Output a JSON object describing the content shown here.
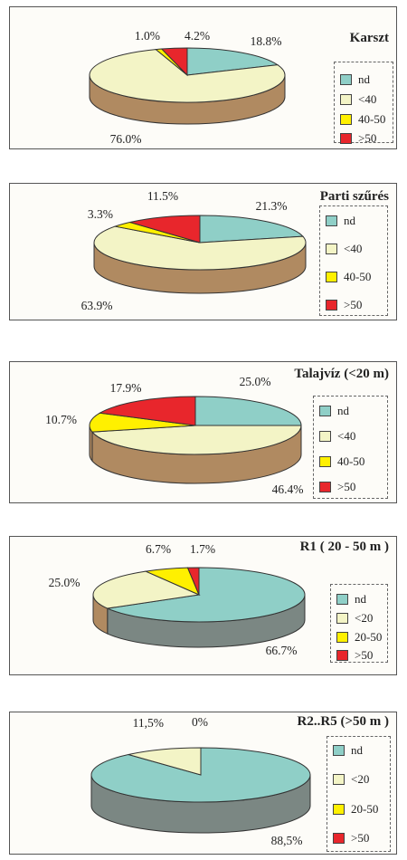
{
  "colors": {
    "nd": "#8fcfc7",
    "low": "#f3f4c6",
    "mid": "#fff000",
    "high": "#e8262c",
    "side_default": "#b08a61",
    "side_nd": "#7b8783"
  },
  "chart_data": [
    {
      "type": "pie",
      "title": "Karszt",
      "legend": [
        "nd",
        "<40",
        "40-50",
        ">50"
      ],
      "values": [
        18.8,
        76.0,
        1.0,
        4.2
      ],
      "labels": [
        "18.8%",
        "76.0%",
        "1.0%",
        "4.2%"
      ]
    },
    {
      "type": "pie",
      "title": "Parti szűrés",
      "legend": [
        "nd",
        "<40",
        "40-50",
        ">50"
      ],
      "values": [
        21.3,
        63.9,
        3.3,
        11.5
      ],
      "labels": [
        "21.3%",
        "63.9%",
        "3.3%",
        "11.5%"
      ]
    },
    {
      "type": "pie",
      "title": "Talajvíz (<20 m)",
      "legend": [
        "nd",
        "<40",
        "40-50",
        ">50"
      ],
      "values": [
        25.0,
        46.4,
        10.7,
        17.9
      ],
      "labels": [
        "25.0%",
        "46.4%",
        "10.7%",
        "17.9%"
      ]
    },
    {
      "type": "pie",
      "title": "R1 ( 20 - 50 m )",
      "legend": [
        "nd",
        "<20",
        "20-50",
        ">50"
      ],
      "values": [
        66.7,
        25.0,
        6.7,
        1.7
      ],
      "labels": [
        "66.7%",
        "25.0%",
        "6.7%",
        "1.7%"
      ]
    },
    {
      "type": "pie",
      "title": "R2..R5 (>50 m )",
      "legend": [
        "nd",
        "<20",
        "20-50",
        ">50"
      ],
      "values": [
        88.5,
        11.5,
        0,
        0
      ],
      "labels": [
        "88,5%",
        "11,5%",
        "",
        "0%"
      ]
    }
  ]
}
